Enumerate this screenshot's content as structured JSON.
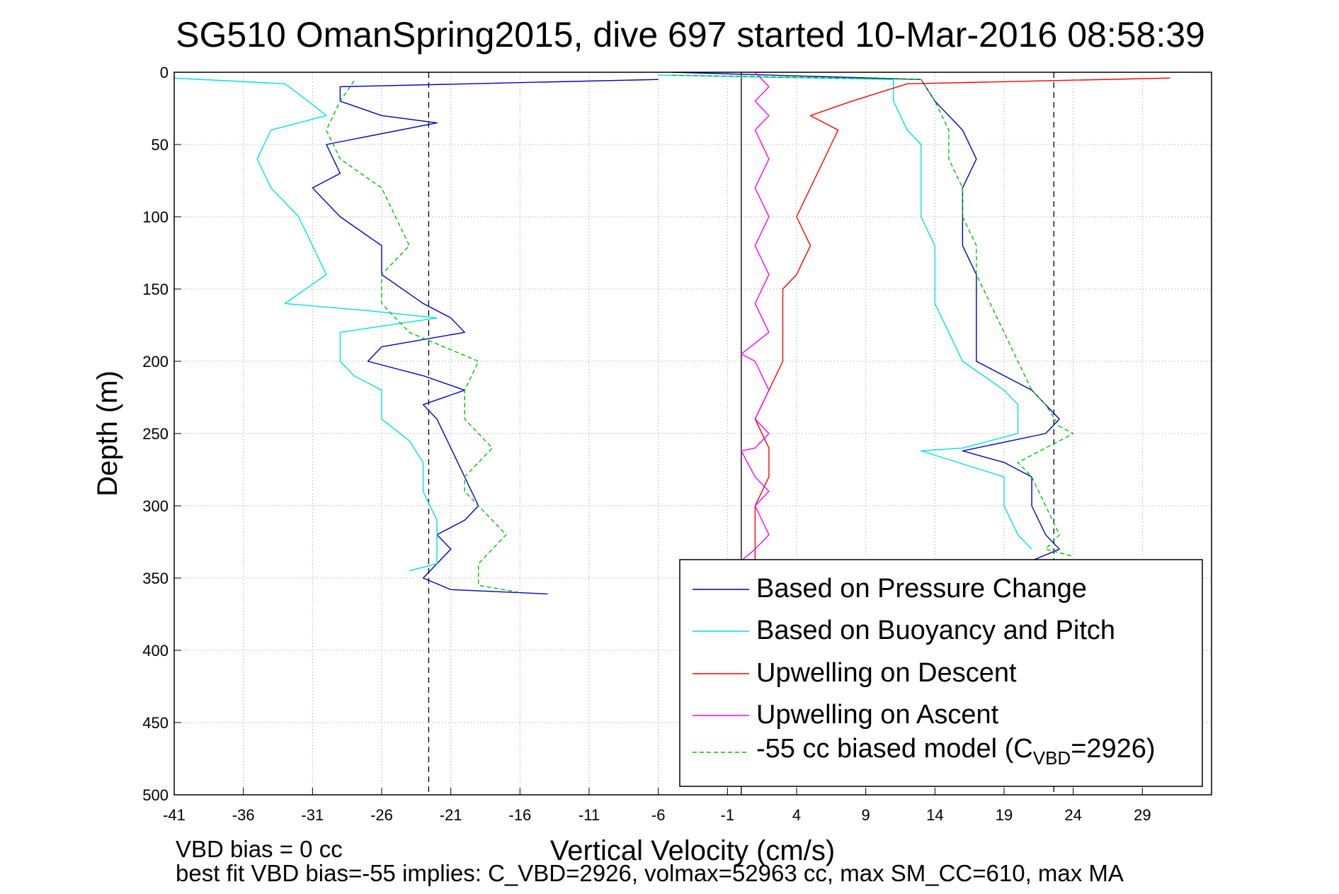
{
  "chart_data": {
    "type": "line",
    "title": "SG510 OmanSpring2015, dive 697 started 10-Mar-2016 08:58:39",
    "xlabel": "Vertical Velocity (cm/s)",
    "ylabel": "Depth (m)",
    "xlim": [
      -41,
      34
    ],
    "ylim": [
      0,
      500
    ],
    "y_reversed": true,
    "grid": true,
    "xticks": [
      -41,
      -36,
      -31,
      -26,
      -21,
      -16,
      -11,
      -6,
      -1,
      4,
      9,
      14,
      19,
      24,
      29
    ],
    "yticks": [
      0,
      50,
      100,
      150,
      200,
      250,
      300,
      350,
      400,
      450,
      500
    ],
    "legend_position": "bottom-right",
    "reference_lines": [
      {
        "x": -22.6,
        "style": "dashed",
        "color": "#000000"
      },
      {
        "x": 22.6,
        "style": "dashed",
        "color": "#000000"
      },
      {
        "x": 0,
        "style": "solid",
        "color": "#000000"
      }
    ],
    "series": [
      {
        "name": "Based on Pressure Change",
        "color": "#0000c0",
        "style": "solid",
        "segments": [
          {
            "x": [
              -6,
              -29,
              -29,
              -26,
              -22,
              -30,
              -29,
              -31,
              -29,
              -26,
              -26,
              -23,
              -21,
              -20,
              -26,
              -27,
              -23,
              -20,
              -23,
              -22,
              -21,
              -20,
              -19,
              -20,
              -22,
              -21,
              -23,
              -21,
              -14
            ],
            "y": [
              5,
              10,
              20,
              30,
              35,
              50,
              70,
              80,
              100,
              120,
              140,
              160,
              170,
              180,
              190,
              200,
              210,
              220,
              230,
              240,
              260,
              280,
              300,
              310,
              320,
              330,
              350,
              358,
              361
            ]
          },
          {
            "x": [
              -5,
              13,
              14,
              16,
              17,
              16,
              16,
              16,
              17,
              17,
              17,
              17,
              19,
              21,
              23,
              22,
              16,
              19,
              21,
              21,
              22,
              23,
              21
            ],
            "y": [
              0,
              5,
              20,
              40,
              60,
              80,
              100,
              120,
              140,
              160,
              180,
              200,
              210,
              220,
              240,
              250,
              262,
              270,
              280,
              300,
              320,
              330,
              338
            ]
          }
        ]
      },
      {
        "name": "Based on Buoyancy and Pitch",
        "color": "#00e0e0",
        "style": "solid",
        "segments": [
          {
            "x": [
              -41,
              -33,
              -32,
              -30,
              -34,
              -35,
              -34,
              -32,
              -31,
              -30,
              -33,
              -27,
              -22,
              -29,
              -29,
              -28,
              -26,
              -26,
              -24,
              -23,
              -23,
              -22,
              -22,
              -22,
              -24
            ],
            "y": [
              4,
              8,
              15,
              30,
              40,
              60,
              80,
              100,
              120,
              140,
              160,
              165,
              170,
              180,
              200,
              210,
              220,
              240,
              255,
              270,
              290,
              310,
              320,
              340,
              345
            ]
          },
          {
            "x": [
              -6,
              11,
              11,
              12,
              13,
              13,
              13,
              14,
              14,
              14,
              15,
              16,
              19,
              20,
              20,
              16,
              13,
              19,
              19,
              20,
              21
            ],
            "y": [
              2,
              5,
              20,
              40,
              50,
              80,
              100,
              120,
              140,
              160,
              180,
              200,
              220,
              230,
              250,
              260,
              262,
              280,
              300,
              320,
              330
            ]
          }
        ]
      },
      {
        "name": "Upwelling on Descent",
        "color": "#ff0000",
        "style": "solid",
        "segments": [
          {
            "x": [
              31,
              12,
              8,
              5,
              7,
              6,
              5,
              4,
              5,
              4,
              3,
              3,
              3,
              3,
              2,
              1,
              2,
              2,
              1,
              1
            ],
            "y": [
              4,
              8,
              20,
              30,
              40,
              60,
              80,
              100,
              120,
              140,
              150,
              160,
              180,
              200,
              220,
              240,
              260,
              280,
              300,
              338
            ]
          }
        ]
      },
      {
        "name": "Upwelling on Ascent",
        "color": "#ff00ff",
        "style": "solid",
        "segments": [
          {
            "x": [
              1,
              2,
              1,
              2,
              1,
              2,
              1,
              2,
              1,
              2,
              1,
              2,
              0,
              1,
              2,
              1,
              2,
              1,
              0,
              1,
              2,
              1,
              2,
              1,
              0
            ],
            "y": [
              0,
              10,
              20,
              30,
              40,
              60,
              80,
              100,
              120,
              140,
              160,
              180,
              195,
              200,
              220,
              240,
              250,
              260,
              262,
              280,
              290,
              300,
              320,
              330,
              338
            ]
          }
        ]
      },
      {
        "name": "-55 cc biased model (CVBD=2926)",
        "color": "#00c000",
        "style": "dashed",
        "segments": [
          {
            "x": [
              -28,
              -29,
              -30,
              -29,
              -26,
              -25,
              -24,
              -26,
              -26,
              -24,
              -19,
              -20,
              -20,
              -18,
              -20,
              -20,
              -19,
              -17,
              -19,
              -19,
              -16
            ],
            "y": [
              6,
              20,
              40,
              60,
              80,
              100,
              120,
              140,
              160,
              180,
              200,
              220,
              240,
              260,
              280,
              290,
              300,
              320,
              340,
              355,
              360
            ]
          },
          {
            "x": [
              -5,
              13,
              14,
              15,
              15,
              16,
              16,
              17,
              17,
              18,
              19,
              20,
              21,
              22,
              23,
              24,
              22,
              20,
              21,
              22,
              23,
              22,
              24
            ],
            "y": [
              2,
              5,
              20,
              40,
              60,
              80,
              100,
              120,
              140,
              160,
              180,
              200,
              220,
              230,
              245,
              250,
              260,
              270,
              280,
              300,
              320,
              330,
              335
            ]
          }
        ]
      }
    ]
  },
  "legend": {
    "labels": [
      "Based on Pressure Change",
      "Based on Buoyancy and Pitch",
      "Upwelling on Descent",
      "Upwelling on Ascent"
    ],
    "last_prefix": "-55 cc biased model (C",
    "last_sub": "VBD",
    "last_suffix": "=2926)"
  },
  "footer": {
    "line1": "VBD bias = 0 cc",
    "line2": "best fit VBD bias=-55 implies: C_VBD=2926, volmax=52963 cc, max SM_CC=610, max MA"
  }
}
